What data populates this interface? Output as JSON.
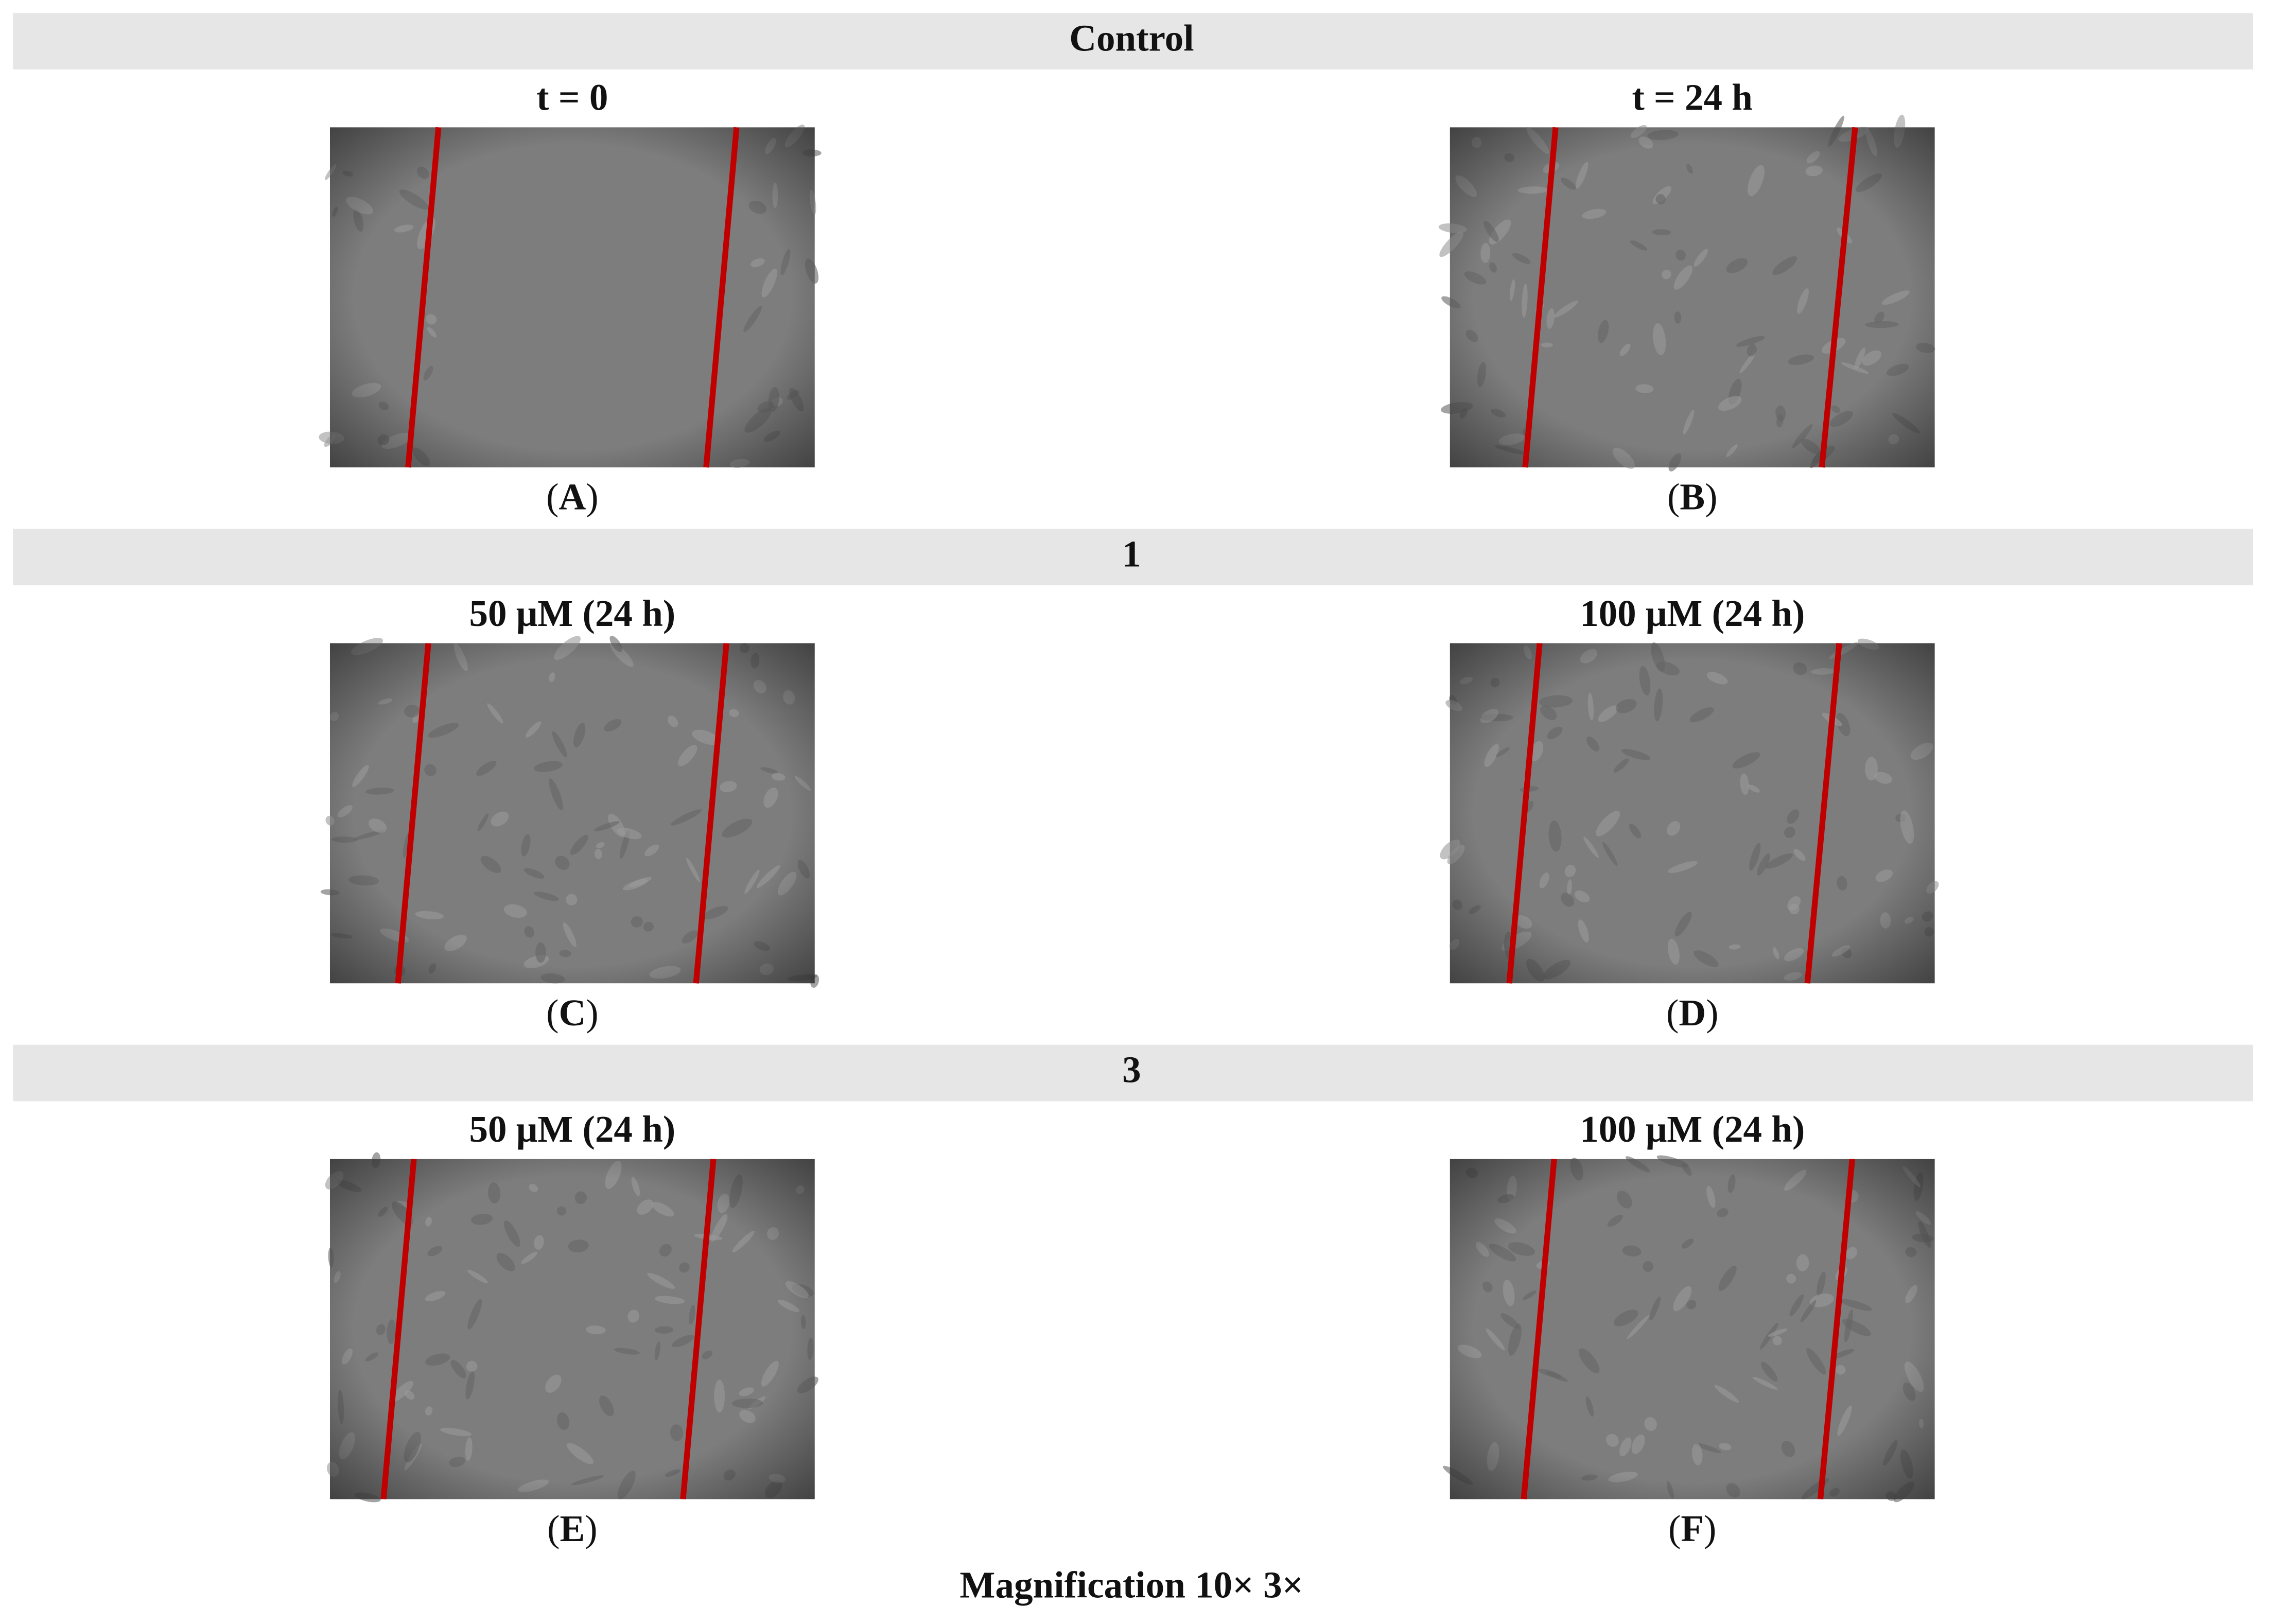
{
  "sections": [
    {
      "header": "Control",
      "panels": [
        {
          "title": "t = 0",
          "label": [
            "(",
            "A",
            ")"
          ]
        },
        {
          "title": "t = 24 h",
          "label": [
            "(",
            "B",
            ")"
          ]
        }
      ]
    },
    {
      "header": "1",
      "panels": [
        {
          "title": "50 μM (24 h)",
          "label": [
            "(",
            "C",
            ")"
          ]
        },
        {
          "title": "100 μM (24 h)",
          "label": [
            "(",
            "D",
            ")"
          ]
        }
      ]
    },
    {
      "header": "3",
      "panels": [
        {
          "title": "50 μM (24 h)",
          "label": [
            "(",
            "E",
            ")"
          ]
        },
        {
          "title": "100 μM (24 h)",
          "label": [
            "(",
            "F",
            ")"
          ]
        }
      ]
    }
  ],
  "footer": "Magnification 10× 3×"
}
